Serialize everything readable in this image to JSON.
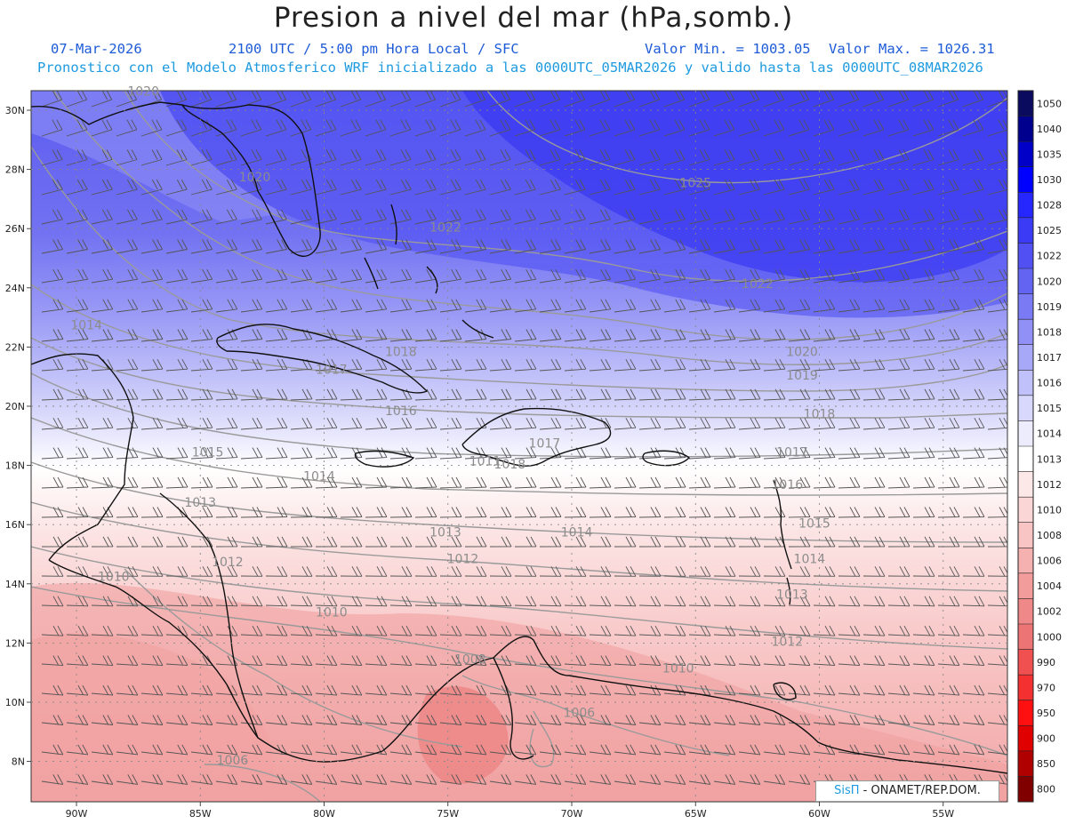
{
  "header": {
    "title": "Presion a nivel del mar (hPa,somb.)",
    "date": "07-Mar-2026",
    "time": "2100 UTC / 5:00 pm Hora Local / SFC",
    "min": "Valor Min. = 1003.05",
    "max": "Valor Max. = 1026.31",
    "info": "Pronostico con el Modelo Atmosferico WRF inicializado a las 0000UTC_05MAR2026 y valido hasta las  0000UTC_08MAR2026"
  },
  "axes": {
    "lat": [
      "30N",
      "28N",
      "26N",
      "24N",
      "22N",
      "20N",
      "18N",
      "16N",
      "14N",
      "12N",
      "10N",
      "8N"
    ],
    "lat_values": [
      30,
      28,
      26,
      24,
      22,
      20,
      18,
      16,
      14,
      12,
      10,
      8
    ],
    "lon": [
      "90W",
      "85W",
      "80W",
      "75W",
      "70W",
      "65W",
      "60W",
      "55W"
    ],
    "lon_values": [
      -90,
      -85,
      -80,
      -75,
      -70,
      -65,
      -60,
      -55
    ]
  },
  "colorbar": {
    "labels": [
      "1050",
      "1040",
      "1035",
      "1030",
      "1028",
      "1025",
      "1022",
      "1020",
      "1019",
      "1018",
      "1017",
      "1016",
      "1015",
      "1014",
      "1013",
      "1012",
      "1010",
      "1008",
      "1006",
      "1004",
      "1002",
      "1000",
      "990",
      "970",
      "950",
      "900",
      "850",
      "800"
    ],
    "colors": [
      "#0a0a5e",
      "#00008e",
      "#0000c8",
      "#0000ff",
      "#2626ff",
      "#3b3bf5",
      "#5050f3",
      "#6464f3",
      "#7a7af5",
      "#9090f7",
      "#a8a8f8",
      "#c0c0fa",
      "#d8d8fc",
      "#ececfd",
      "#ffffff",
      "#fde8e8",
      "#fbd6d6",
      "#f8c4c4",
      "#f5b0b0",
      "#f29c9c",
      "#ef8888",
      "#ec7474",
      "#f05050",
      "#f53030",
      "#ff1010",
      "#e00000",
      "#b00000",
      "#800000"
    ]
  },
  "isobars": [
    {
      "v": "1025",
      "lon": -65,
      "lat": 27.4
    },
    {
      "v": "1022",
      "lon": -75.1,
      "lat": 25.9
    },
    {
      "v": "1022",
      "lon": -62.5,
      "lat": 24
    },
    {
      "v": "1020",
      "lon": -87.3,
      "lat": 30.5
    },
    {
      "v": "1020",
      "lon": -82.8,
      "lat": 27.6
    },
    {
      "v": "1020",
      "lon": -60.7,
      "lat": 21.7
    },
    {
      "v": "1019",
      "lon": -60.7,
      "lat": 20.9
    },
    {
      "v": "1018",
      "lon": -76.9,
      "lat": 21.7
    },
    {
      "v": "1018",
      "lon": -60,
      "lat": 19.6
    },
    {
      "v": "1017",
      "lon": -79.7,
      "lat": 21.1
    },
    {
      "v": "1017",
      "lon": -71.1,
      "lat": 18.6
    },
    {
      "v": "1017",
      "lon": -61.1,
      "lat": 18.3
    },
    {
      "v": "1016",
      "lon": -76.9,
      "lat": 19.7
    },
    {
      "v": "1016",
      "lon": -61.3,
      "lat": 17.2
    },
    {
      "v": "1015",
      "lon": -84.7,
      "lat": 18.3
    },
    {
      "v": "1015",
      "lon": -60.2,
      "lat": 15.9
    },
    {
      "v": "1014",
      "lon": -89.6,
      "lat": 22.6
    },
    {
      "v": "1014",
      "lon": -80.2,
      "lat": 17.5
    },
    {
      "v": "1014",
      "lon": -69.8,
      "lat": 15.6
    },
    {
      "v": "1014",
      "lon": -60.4,
      "lat": 14.7
    },
    {
      "v": "1013",
      "lon": -85,
      "lat": 16.6
    },
    {
      "v": "1013",
      "lon": -75.1,
      "lat": 15.6
    },
    {
      "v": "1013",
      "lon": -61.1,
      "lat": 13.5
    },
    {
      "v": "1012",
      "lon": -83.9,
      "lat": 14.6
    },
    {
      "v": "1012",
      "lon": -74.4,
      "lat": 14.7
    },
    {
      "v": "1012",
      "lon": -61.3,
      "lat": 11.9
    },
    {
      "v": "1011",
      "lon": -73.5,
      "lat": 18
    },
    {
      "v": "1010",
      "lon": -88.5,
      "lat": 14.1
    },
    {
      "v": "1010",
      "lon": -79.7,
      "lat": 12.9
    },
    {
      "v": "1010",
      "lon": -65.7,
      "lat": 11
    },
    {
      "v": "1008",
      "lon": -74.1,
      "lat": 11.3
    },
    {
      "v": "1006",
      "lon": -69.7,
      "lat": 9.5
    },
    {
      "v": "1006",
      "lon": -83.7,
      "lat": 7.9
    },
    {
      "v": "1018",
      "lon": -72.5,
      "lat": 17.9
    }
  ],
  "attribution": {
    "brand": "SisΠ",
    "text": " - ONAMET/REP.DOM."
  }
}
